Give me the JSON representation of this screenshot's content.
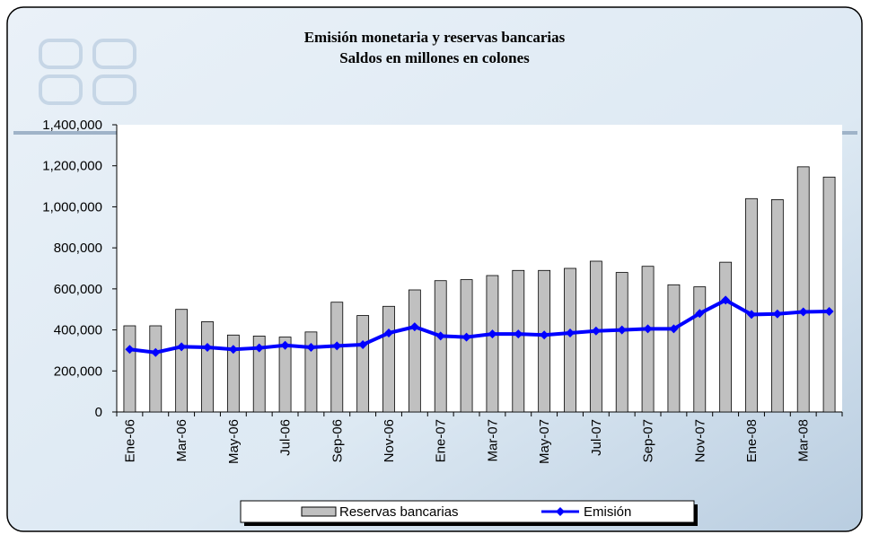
{
  "chart_data": {
    "type": "bar_line",
    "title": "Emisión monetaria y reservas bancarias",
    "subtitle": "Saldos en millones en colones",
    "categories": [
      "Ene-06",
      null,
      "Mar-06",
      null,
      "May-06",
      null,
      "Jul-06",
      null,
      "Sep-06",
      null,
      "Nov-06",
      null,
      "Ene-07",
      null,
      "Mar-07",
      null,
      "May-07",
      null,
      "Jul-07",
      null,
      "Sep-07",
      null,
      "Nov-07",
      null,
      "Ene-08",
      null,
      "Mar-08",
      null
    ],
    "series": [
      {
        "name": "Reservas bancarias",
        "type": "bar",
        "color": "#c0c0c0",
        "values": [
          420000,
          420000,
          500000,
          440000,
          375000,
          370000,
          365000,
          390000,
          535000,
          470000,
          515000,
          595000,
          640000,
          645000,
          665000,
          690000,
          690000,
          700000,
          735000,
          680000,
          710000,
          620000,
          610000,
          730000,
          1040000,
          1035000,
          1195000,
          1145000
        ]
      },
      {
        "name": "Emisión",
        "type": "line",
        "color": "#0000ff",
        "values": [
          305000,
          290000,
          318000,
          315000,
          305000,
          312000,
          325000,
          315000,
          322000,
          328000,
          385000,
          415000,
          370000,
          365000,
          380000,
          380000,
          375000,
          385000,
          395000,
          400000,
          405000,
          405000,
          480000,
          545000,
          475000,
          478000,
          488000,
          490000
        ]
      }
    ],
    "ylim": [
      0,
      1400000
    ],
    "yticks": [
      0,
      {
        "value": 200000,
        "label": "200,000"
      },
      {
        "value": 400000,
        "label": "400,000"
      },
      {
        "value": 600000,
        "label": "600,000"
      },
      {
        "value": 800000,
        "label": "800,000"
      },
      {
        "value": 1000000,
        "label": "1,000,000"
      },
      {
        "value": 1200000,
        "label": "1,200,000"
      },
      {
        "value": 1400000,
        "label": "1,400,000"
      }
    ],
    "legend": "bottom"
  }
}
